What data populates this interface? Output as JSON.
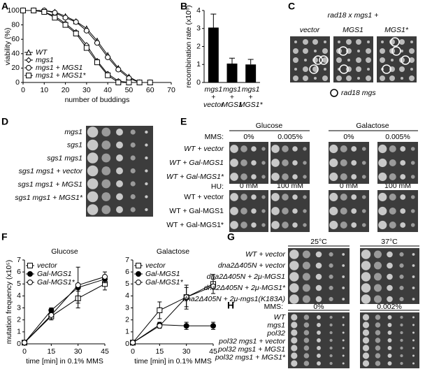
{
  "panel_letters": [
    "A",
    "B",
    "C",
    "D",
    "E",
    "F",
    "G",
    "H"
  ],
  "chart_data": [
    {
      "type": "line",
      "xlabel": "number of buddings",
      "ylabel": "viability (%)",
      "xlim": [
        0,
        70
      ],
      "xticks": [
        0,
        10,
        20,
        30,
        40,
        50,
        60,
        70
      ],
      "ylim": [
        0,
        100
      ],
      "yticks": [
        0,
        20,
        40,
        60,
        80,
        100
      ],
      "legend": "lower left",
      "x": [
        0,
        5,
        10,
        15,
        20,
        25,
        30,
        35,
        40,
        45,
        50,
        55,
        60
      ],
      "series": [
        {
          "name": "WT",
          "marker": "open-triangle",
          "color": "#000",
          "values": [
            100,
            100,
            100,
            98,
            92,
            85,
            75,
            58,
            38,
            20,
            8,
            0,
            0
          ]
        },
        {
          "name": "mgs1",
          "marker": "open-diamond",
          "color": "#000",
          "values": [
            100,
            100,
            98,
            92,
            82,
            70,
            52,
            30,
            12,
            2,
            0,
            0,
            0
          ]
        },
        {
          "name": "mgs1 + MGS1",
          "marker": "open-circle",
          "color": "#000",
          "values": [
            100,
            100,
            100,
            97,
            90,
            84,
            72,
            55,
            35,
            18,
            6,
            0,
            0
          ]
        },
        {
          "name": "mgs1 + MGS1*",
          "marker": "open-square",
          "color": "#000",
          "values": [
            100,
            100,
            98,
            90,
            80,
            68,
            48,
            28,
            10,
            0,
            0,
            0,
            0
          ]
        }
      ]
    },
    {
      "type": "bar",
      "ylabel": "recombination rate (x10⁶)",
      "ylim": [
        0,
        4
      ],
      "yticks": [
        0,
        1,
        2,
        3,
        4
      ],
      "color": "#000",
      "categories": [
        [
          "mgs1",
          "+",
          "vector"
        ],
        [
          "mgs1",
          "+",
          "MGS1"
        ],
        [
          "mgs1",
          "+",
          "MGS1*"
        ]
      ],
      "values": [
        3.05,
        1.05,
        1.0
      ],
      "errors": [
        0.75,
        0.3,
        0.28
      ]
    },
    {
      "type": "line",
      "title": "Glucose",
      "xlabel": "time [min] in 0.1% MMS",
      "ylabel": "mutation frequency (x10⁵)",
      "xlim": [
        0,
        45
      ],
      "xticks": [
        0,
        15,
        30,
        45
      ],
      "ylim": [
        0,
        7
      ],
      "yticks": [
        0,
        1,
        2,
        3,
        4,
        5,
        6,
        7
      ],
      "legend": "upper left",
      "x": [
        0,
        15,
        30,
        45
      ],
      "series": [
        {
          "name": "vector",
          "marker": "open-square",
          "color": "#000",
          "values": [
            0.1,
            2.3,
            3.8,
            5.0
          ],
          "errors": [
            0,
            0.3,
            0.8,
            0.5
          ]
        },
        {
          "name": "Gal-MGS1",
          "marker": "filled-circle",
          "color": "#000",
          "values": [
            0.1,
            2.8,
            4.7,
            5.4
          ],
          "errors": [
            0,
            0.2,
            0.3,
            0.3
          ]
        },
        {
          "name": "Gal-MGS1*",
          "marker": "open-circle",
          "color": "#000",
          "values": [
            0.1,
            2.4,
            4.9,
            5.6
          ],
          "errors": [
            0,
            0.3,
            1.5,
            0.4
          ]
        }
      ]
    },
    {
      "type": "line",
      "title": "Galactose",
      "xlabel": "time [min] in 0.1% MMS",
      "xlim": [
        0,
        45
      ],
      "xticks": [
        0,
        15,
        30,
        45
      ],
      "ylim": [
        0,
        7
      ],
      "yticks": [
        0,
        1,
        2,
        3,
        4,
        5,
        6,
        7
      ],
      "legend": "upper left",
      "x": [
        0,
        15,
        30,
        45
      ],
      "series": [
        {
          "name": "vector",
          "marker": "open-square",
          "color": "#000",
          "values": [
            0.1,
            2.8,
            3.9,
            5.0
          ],
          "errors": [
            0,
            0.7,
            0.8,
            0.8
          ]
        },
        {
          "name": "Gal-MGS1",
          "marker": "filled-circle",
          "color": "#000",
          "values": [
            0.1,
            1.6,
            1.5,
            1.5
          ],
          "errors": [
            0,
            0.2,
            0.3,
            0.3
          ]
        },
        {
          "name": "Gal-MGS1*",
          "marker": "open-circle",
          "color": "#000",
          "values": [
            0.1,
            1.5,
            3.9,
            4.8
          ],
          "errors": [
            0,
            0.2,
            1.0,
            0.6
          ]
        }
      ]
    }
  ],
  "panel_c": {
    "title": "rad18 x mgs1 +",
    "columns": [
      "vector",
      "MGS1",
      "MGS1*"
    ],
    "legend": "rad18 mgs"
  },
  "panel_d": {
    "rows": [
      "mgs1",
      "sgs1",
      "sgs1 mgs1",
      "sgs1 mgs1 + vector",
      "sgs1 mgs1 + MGS1",
      "sgs1 mgs1 + MGS1*"
    ]
  },
  "panel_e": {
    "groups": [
      "Glucose",
      "Galactose"
    ],
    "mms_label": "MMS:",
    "mms_doses": [
      "0%",
      "0.005%",
      "0%",
      "0.005%"
    ],
    "hu_label": "HU:",
    "hu_doses": [
      "0 mM",
      "100 mM",
      "0 mM",
      "100 mM"
    ],
    "rows": [
      "WT + vector",
      "WT + Gal-MGS1",
      "WT + Gal-MGS1*"
    ]
  },
  "panel_g": {
    "temperatures": [
      "25°C",
      "37°C"
    ],
    "rows": [
      "WT + vector",
      "dna2Δ405N + vector",
      "dna2Δ405N + 2μ-MGS1",
      "dna2Δ405N + 2μ-MGS1*",
      "dna2Δ405N + 2μ-mgs1(K183A)"
    ]
  },
  "panel_h": {
    "mms_label": "MMS:",
    "doses": [
      "0%",
      "0.002%"
    ],
    "rows": [
      "WT",
      "mgs1",
      "pol32",
      "pol32 mgs1 + vector",
      "pol32 mgs1 + MGS1",
      "pol32 mgs1 + MGS1*"
    ]
  }
}
